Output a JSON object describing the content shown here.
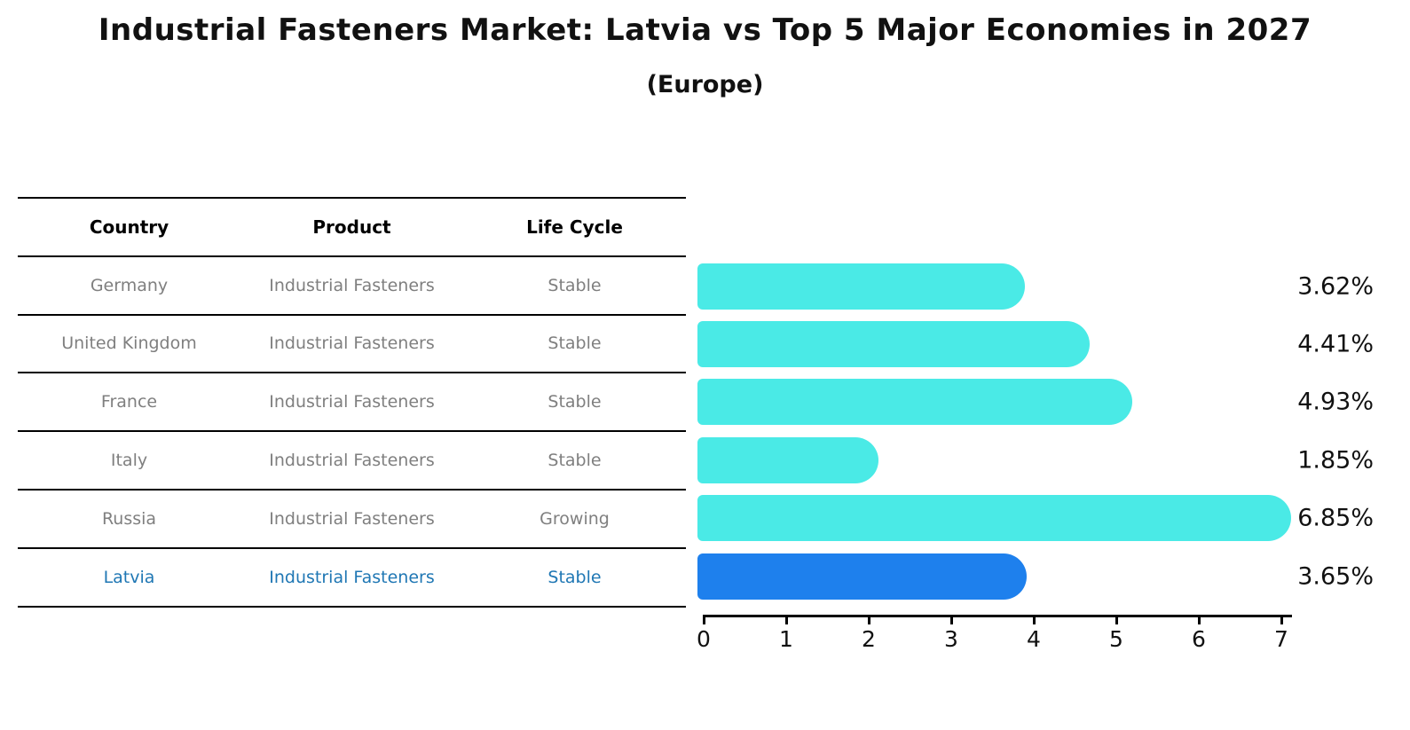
{
  "title": "Industrial Fasteners Market: Latvia vs Top 5 Major Economies in 2027",
  "subtitle": "(Europe)",
  "colors": {
    "bar": "#4AEAE6",
    "highlight_bar": "#1E80ED",
    "highlight_text": "#1f77b4",
    "table_text": "#7f7f7f",
    "header_text": "#000000",
    "axis": "#000000"
  },
  "table": {
    "headers": [
      "Country",
      "Product",
      "Life Cycle"
    ],
    "rows": [
      {
        "country": "Germany",
        "product": "Industrial Fasteners",
        "life_cycle": "Stable",
        "highlight": false
      },
      {
        "country": "United Kingdom",
        "product": "Industrial Fasteners",
        "life_cycle": "Stable",
        "highlight": false
      },
      {
        "country": "France",
        "product": "Industrial Fasteners",
        "life_cycle": "Stable",
        "highlight": false
      },
      {
        "country": "Italy",
        "product": "Industrial Fasteners",
        "life_cycle": "Stable",
        "highlight": false
      },
      {
        "country": "Russia",
        "product": "Industrial Fasteners",
        "life_cycle": "Growing",
        "highlight": false
      },
      {
        "country": "Latvia",
        "product": "Industrial Fasteners",
        "life_cycle": "Stable",
        "highlight": true
      }
    ]
  },
  "chart_data": {
    "type": "bar",
    "orientation": "horizontal",
    "categories": [
      "Germany",
      "United Kingdom",
      "France",
      "Italy",
      "Russia",
      "Latvia"
    ],
    "values": [
      3.62,
      4.41,
      4.93,
      1.85,
      6.85,
      3.65
    ],
    "value_labels": [
      "3.62%",
      "4.41%",
      "4.93%",
      "1.85%",
      "6.85%",
      "3.65%"
    ],
    "highlight_index": 5,
    "highlight_style": "dotted-edge",
    "xlim": [
      0,
      7.15
    ],
    "xticks": [
      "0",
      "1",
      "2",
      "3",
      "4",
      "5",
      "6",
      "7"
    ],
    "grid": false,
    "legend": null
  }
}
